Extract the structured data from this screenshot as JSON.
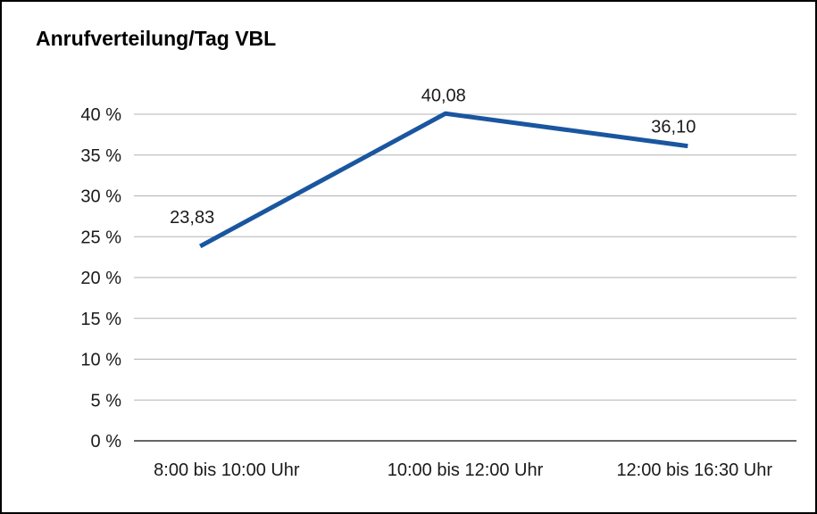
{
  "chart_data": {
    "type": "line",
    "title": "Anrufverteilung/Tag VBL",
    "categories": [
      "8:00 bis 10:00 Uhr",
      "10:00 bis 12:00 Uhr",
      "12:00 bis 16:30 Uhr"
    ],
    "values": [
      23.83,
      40.08,
      36.1
    ],
    "value_labels": [
      "23,83",
      "40,08",
      "36,10"
    ],
    "xlabel": "",
    "ylabel": "",
    "ylim": [
      0,
      40
    ],
    "yticks": [
      {
        "value": 0,
        "label": "0 %"
      },
      {
        "value": 5,
        "label": "5 %"
      },
      {
        "value": 10,
        "label": "10 %"
      },
      {
        "value": 15,
        "label": "15 %"
      },
      {
        "value": 20,
        "label": "20 %"
      },
      {
        "value": 25,
        "label": "25 %"
      },
      {
        "value": 30,
        "label": "30 %"
      },
      {
        "value": 35,
        "label": "35 %"
      },
      {
        "value": 40,
        "label": "40 %"
      }
    ],
    "grid": "horizontal",
    "legend": "none",
    "colors": {
      "line": "#1A56A0",
      "grid": "#b3b3b3",
      "axis": "#333333",
      "text": "#1a1a1a",
      "background": "#ffffff",
      "border": "#000000"
    }
  }
}
